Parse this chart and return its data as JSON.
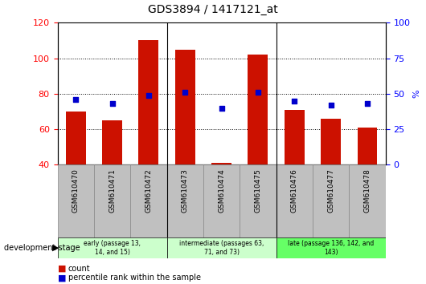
{
  "title": "GDS3894 / 1417121_at",
  "samples": [
    "GSM610470",
    "GSM610471",
    "GSM610472",
    "GSM610473",
    "GSM610474",
    "GSM610475",
    "GSM610476",
    "GSM610477",
    "GSM610478"
  ],
  "counts": [
    70,
    65,
    110,
    105,
    41,
    102,
    71,
    66,
    61
  ],
  "percentile_ranks": [
    46,
    43,
    49,
    51,
    40,
    51,
    45,
    42,
    43
  ],
  "ylim_left": [
    40,
    120
  ],
  "ylim_right": [
    0,
    100
  ],
  "yticks_left": [
    40,
    60,
    80,
    100,
    120
  ],
  "yticks_right": [
    0,
    25,
    50,
    75,
    100
  ],
  "bar_color": "#cc1100",
  "dot_color": "#0000cc",
  "grid_color": "#000000",
  "bg_color": "#ffffff",
  "tick_area_color": "#c0c0c0",
  "group_colors": [
    "#ccffcc",
    "#ccffcc",
    "#66ff66"
  ],
  "group_labels": [
    "early (passage 13,\n14, and 15)",
    "intermediate (passages 63,\n71, and 73)",
    "late (passage 136, 142, and\n143)"
  ],
  "group_ranges": [
    [
      0,
      2
    ],
    [
      3,
      5
    ],
    [
      6,
      8
    ]
  ],
  "legend_count_color": "#cc1100",
  "legend_pct_color": "#0000cc",
  "dev_stage_label": "development stage",
  "xlabel_count": "count",
  "xlabel_pct": "percentile rank within the sample"
}
